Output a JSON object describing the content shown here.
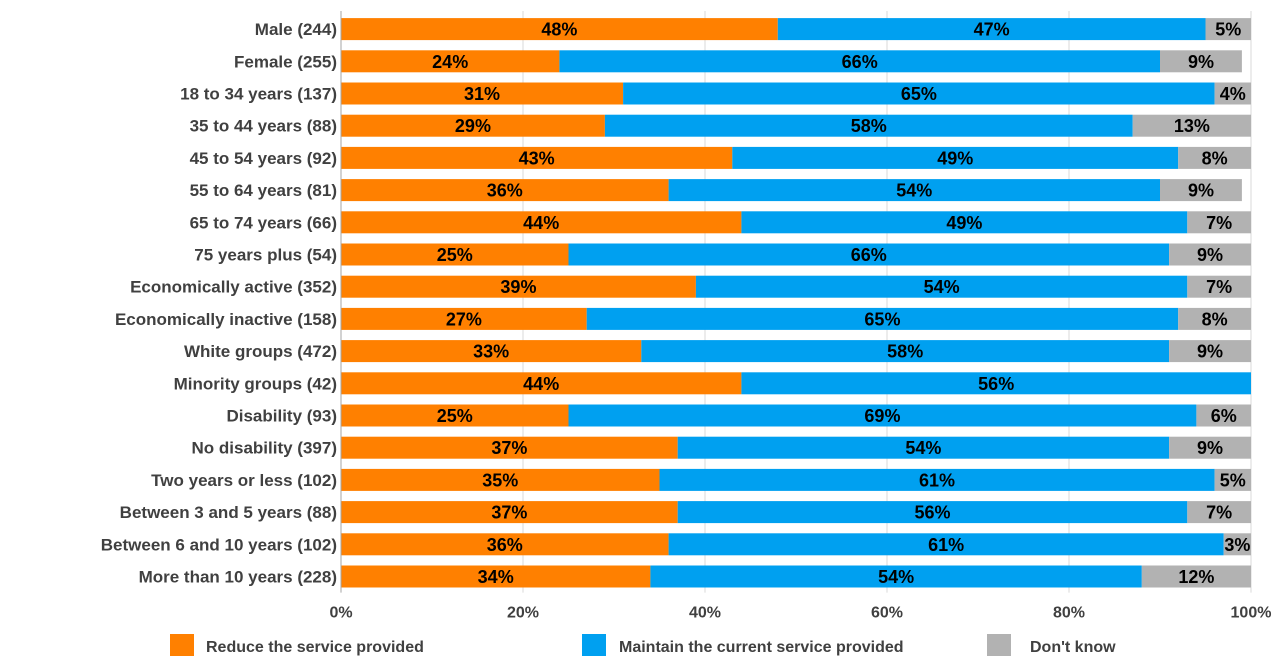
{
  "chart_data": {
    "type": "bar",
    "orientation": "horizontal",
    "stacked": true,
    "title": "",
    "xlabel": "",
    "ylabel": "",
    "xlim": [
      0,
      100
    ],
    "x_ticks": [
      "0%",
      "20%",
      "40%",
      "60%",
      "80%",
      "100%"
    ],
    "grid": true,
    "legend_position": "bottom",
    "categories": [
      "Male (244)",
      "Female (255)",
      "18 to 34 years (137)",
      "35 to 44 years (88)",
      "45 to 54 years (92)",
      "55 to 64 years (81)",
      "65 to 74 years (66)",
      "75 years plus (54)",
      "Economically active (352)",
      "Economically inactive (158)",
      "White groups (472)",
      "Minority groups (42)",
      "Disability (93)",
      "No disability (397)",
      "Two years or less (102)",
      "Between 3 and 5 years  (88)",
      "Between 6 and 10 years  (102)",
      "More than 10 years (228)"
    ],
    "series": [
      {
        "name": "Reduce the service provided",
        "color": "#ff8000",
        "values": [
          48,
          24,
          31,
          29,
          43,
          36,
          44,
          25,
          39,
          27,
          33,
          44,
          25,
          37,
          35,
          37,
          36,
          34
        ],
        "labels": [
          "48%",
          "24%",
          "31%",
          "29%",
          "43%",
          "36%",
          "44%",
          "25%",
          "39%",
          "27%",
          "33%",
          "44%",
          "25%",
          "37%",
          "35%",
          "37%",
          "36%",
          "34%"
        ]
      },
      {
        "name": "Maintain the current service provided",
        "color": "#00a0f0",
        "values": [
          47,
          66,
          65,
          58,
          49,
          54,
          49,
          66,
          54,
          65,
          58,
          56,
          69,
          54,
          61,
          56,
          61,
          54
        ],
        "labels": [
          "47%",
          "66%",
          "65%",
          "58%",
          "49%",
          "54%",
          "49%",
          "66%",
          "54%",
          "65%",
          "58%",
          "56%",
          "69%",
          "54%",
          "61%",
          "56%",
          "61%",
          "54%"
        ]
      },
      {
        "name": "Don't know",
        "color": "#b2b2b2",
        "values": [
          5,
          9,
          4,
          13,
          8,
          9,
          7,
          9,
          7,
          8,
          9,
          0,
          6,
          9,
          5,
          7,
          3,
          12
        ],
        "labels": [
          "5%",
          "9%",
          "4%",
          "13%",
          "8%",
          "9%",
          "7%",
          "9%",
          "7%",
          "8%",
          "9%",
          "",
          "6%",
          "9%",
          "5%",
          "7%",
          "3%",
          "12%"
        ]
      }
    ]
  }
}
